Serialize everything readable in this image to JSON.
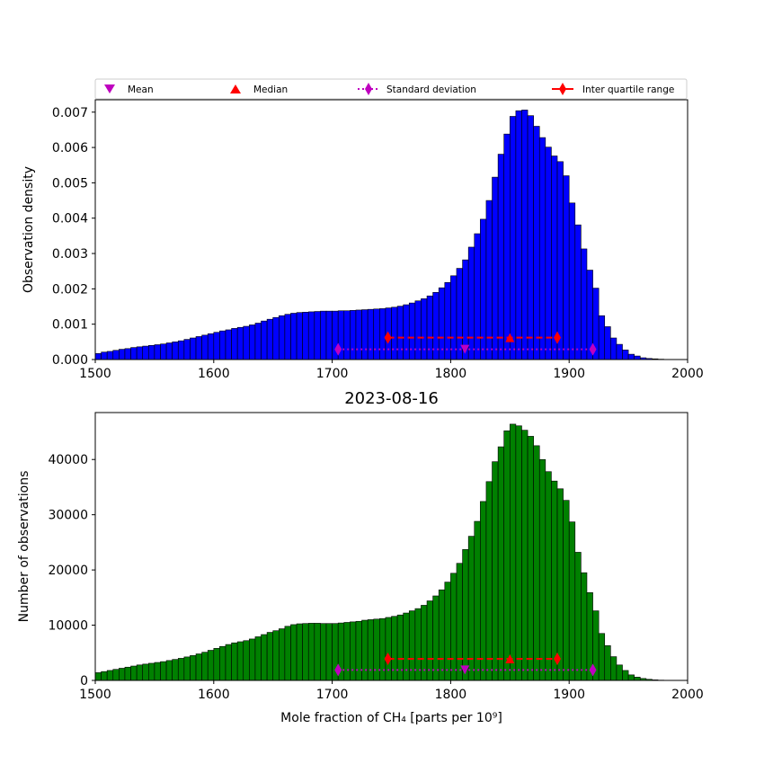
{
  "chart_data": [
    {
      "type": "bar",
      "panel": "density",
      "title": "",
      "xlabel": "",
      "ylabel": "Observation density",
      "xlim": [
        1500,
        2000
      ],
      "ylim": [
        0,
        0.00735
      ],
      "xticks": [
        "1500",
        "1600",
        "1700",
        "1800",
        "1900",
        "2000"
      ],
      "yticks": [
        "0.000",
        "0.001",
        "0.002",
        "0.003",
        "0.004",
        "0.005",
        "0.006",
        "0.007"
      ],
      "bin_start": 1500,
      "bin_width": 5,
      "bar_color": "#0000ff",
      "edge_color": "#000000",
      "values": [
        0.00017,
        0.00021,
        0.00023,
        0.00026,
        0.00029,
        0.00031,
        0.00034,
        0.00036,
        0.00038,
        0.0004,
        0.00042,
        0.00044,
        0.00047,
        0.0005,
        0.00053,
        0.00057,
        0.00061,
        0.00065,
        0.00069,
        0.00073,
        0.00077,
        0.00081,
        0.00084,
        0.00088,
        0.00091,
        0.00094,
        0.00098,
        0.00103,
        0.00109,
        0.00114,
        0.00119,
        0.00124,
        0.00128,
        0.00131,
        0.00133,
        0.00134,
        0.00135,
        0.00136,
        0.00137,
        0.00137,
        0.00137,
        0.00138,
        0.00138,
        0.00139,
        0.0014,
        0.00141,
        0.00142,
        0.00143,
        0.00144,
        0.00146,
        0.00148,
        0.00151,
        0.00155,
        0.0016,
        0.00166,
        0.00172,
        0.0018,
        0.0019,
        0.00203,
        0.00218,
        0.00237,
        0.00258,
        0.00282,
        0.00318,
        0.00356,
        0.00397,
        0.0045,
        0.00516,
        0.00581,
        0.00638,
        0.00688,
        0.00704,
        0.00706,
        0.0069,
        0.0066,
        0.00628,
        0.00601,
        0.00576,
        0.0056,
        0.0052,
        0.00443,
        0.00381,
        0.00313,
        0.00253,
        0.00202,
        0.00124,
        0.00093,
        0.00061,
        0.00043,
        0.00027,
        0.00015,
        0.0001,
        5e-05,
        3e-05,
        2e-05,
        1e-05,
        0.0,
        0.0,
        0.0,
        0.0
      ],
      "legend": {
        "placement": "top",
        "entries": [
          {
            "label": "Mean",
            "marker": "triangle-down",
            "color": "#bf00bf"
          },
          {
            "label": "Median",
            "marker": "triangle-up",
            "color": "#ff0000"
          },
          {
            "label": "Standard deviation",
            "marker": "diamond",
            "color": "#bf00bf",
            "line": "dotted"
          },
          {
            "label": "Inter quartile range",
            "marker": "diamond",
            "color": "#ff0000",
            "line": "dashed"
          }
        ]
      },
      "stats": {
        "mean": {
          "x": 1812,
          "y": 0.00029
        },
        "median": {
          "x": 1850,
          "y": 0.00062
        },
        "std_range": {
          "x": [
            1705,
            1920
          ],
          "y": 0.00029
        },
        "iqr": {
          "x": [
            1747,
            1890
          ],
          "y": 0.00062
        }
      }
    },
    {
      "type": "bar",
      "panel": "counts",
      "title": "2023-08-16",
      "xlabel": "Mole fraction of CH₄ [parts per 10⁹]",
      "ylabel": "Number of observations",
      "xlim": [
        1500,
        2000
      ],
      "ylim": [
        0,
        48500
      ],
      "xticks": [
        "1500",
        "1600",
        "1700",
        "1800",
        "1900",
        "2000"
      ],
      "yticks": [
        "0",
        "10000",
        "20000",
        "30000",
        "40000"
      ],
      "bin_start": 1500,
      "bin_width": 5,
      "bar_color": "#008000",
      "edge_color": "#000000",
      "values": [
        1400,
        1600,
        1800,
        2000,
        2200,
        2400,
        2600,
        2800,
        2950,
        3100,
        3250,
        3400,
        3600,
        3800,
        4000,
        4250,
        4500,
        4800,
        5100,
        5450,
        5800,
        6150,
        6500,
        6800,
        7000,
        7200,
        7500,
        7900,
        8300,
        8700,
        9000,
        9350,
        9800,
        10100,
        10250,
        10300,
        10350,
        10350,
        10300,
        10300,
        10300,
        10400,
        10500,
        10600,
        10700,
        10900,
        11000,
        11100,
        11200,
        11400,
        11600,
        11850,
        12200,
        12600,
        13000,
        13600,
        14400,
        15300,
        16400,
        17800,
        19400,
        21200,
        23700,
        26100,
        28800,
        32400,
        36000,
        39600,
        42300,
        45200,
        46400,
        46100,
        45300,
        44200,
        42500,
        40000,
        37800,
        36100,
        34700,
        32600,
        28700,
        23200,
        19500,
        15900,
        12600,
        8500,
        6300,
        4300,
        2800,
        1800,
        1000,
        600,
        350,
        200,
        100,
        50,
        20,
        0,
        0,
        0
      ],
      "stats": {
        "mean": {
          "x": 1812,
          "y": 1900
        },
        "median": {
          "x": 1850,
          "y": 3900
        },
        "std_range": {
          "x": [
            1705,
            1920
          ],
          "y": 1900
        },
        "iqr": {
          "x": [
            1747,
            1890
          ],
          "y": 3900
        }
      }
    }
  ]
}
